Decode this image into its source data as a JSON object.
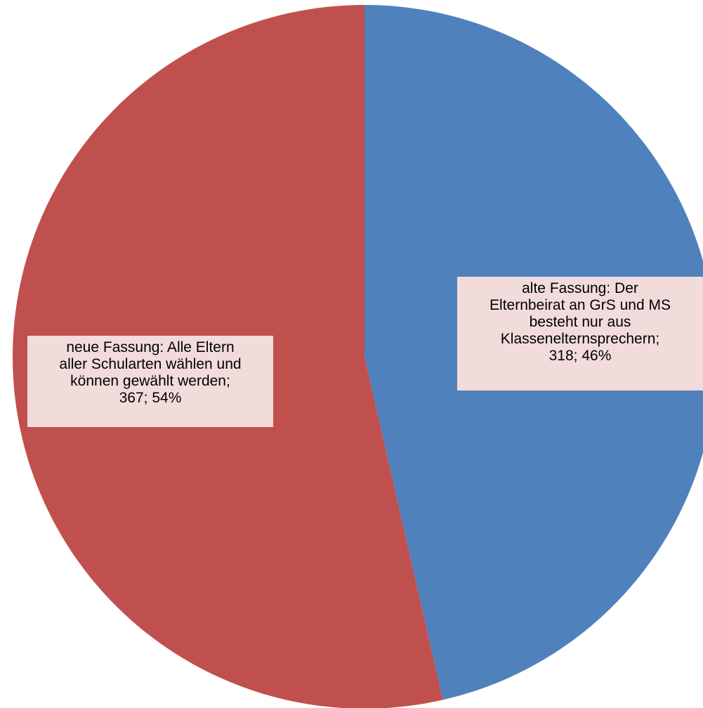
{
  "chart_data": {
    "type": "pie",
    "title": "",
    "start_angle_deg": 0,
    "direction": "clockwise",
    "slices": [
      {
        "label": "alte Fassung: Der Elternbeirat an GrS und MS besteht nur aus Klassenelternsprechern",
        "value": 318,
        "percent": 46,
        "color": "#4f81bd",
        "data_label_lines": [
          "alte Fassung: Der",
          "Elternbeirat an GrS und MS",
          "besteht nur aus",
          "Klassenelternsprechern;",
          "318; 46%"
        ]
      },
      {
        "label": "neue Fassung: Alle Eltern aller Schularten wählen und können gewählt werden",
        "value": 367,
        "percent": 54,
        "color": "#c0504d",
        "data_label_lines": [
          "neue Fassung: Alle Eltern",
          "aller Schularten wählen und",
          "können gewählt werden;",
          "367; 54%"
        ]
      }
    ],
    "legend": "none",
    "data_label_background": "#f2dcdb"
  }
}
